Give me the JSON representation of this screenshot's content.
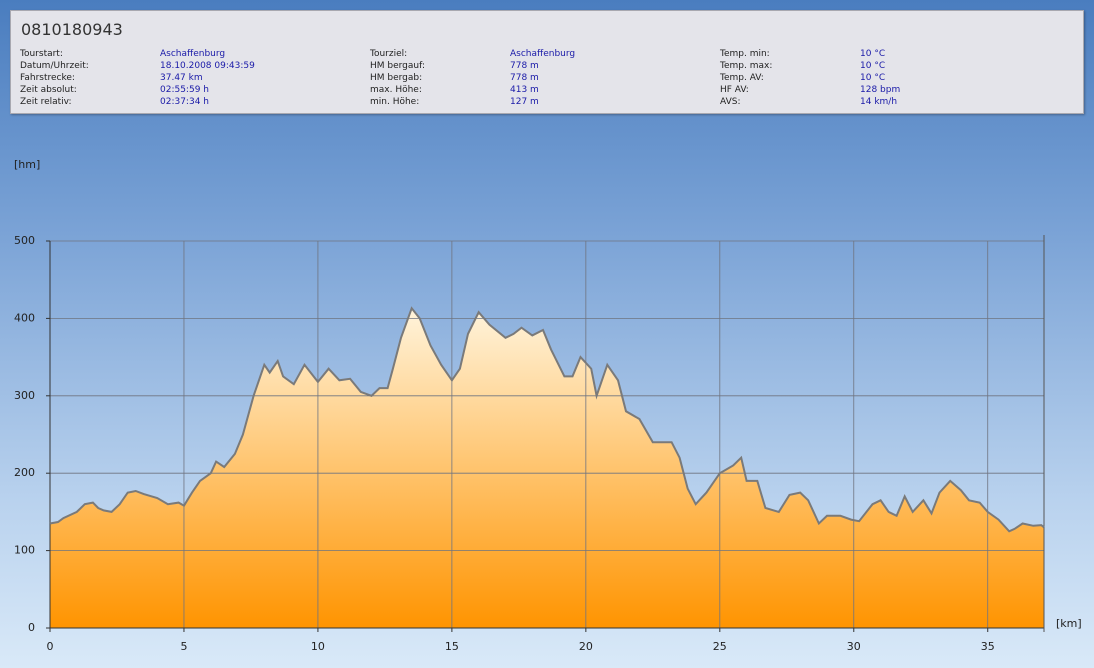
{
  "header": {
    "title": "0810180943",
    "columns": [
      [
        [
          "Tourstart:",
          "Aschaffenburg"
        ],
        [
          "Datum/Uhrzeit:",
          "18.10.2008 09:43:59"
        ],
        [
          "Fahrstrecke:",
          "37.47 km"
        ],
        [
          "Zeit absolut:",
          "02:55:59 h"
        ],
        [
          "Zeit relativ:",
          "02:37:34 h"
        ]
      ],
      [
        [
          "Tourziel:",
          "Aschaffenburg"
        ],
        [
          "HM bergauf:",
          "778 m"
        ],
        [
          "HM bergab:",
          "778 m"
        ],
        [
          "max. Höhe:",
          "413 m"
        ],
        [
          "min. Höhe:",
          "127 m"
        ]
      ],
      [
        [
          "Temp. min:",
          "10 °C"
        ],
        [
          "Temp. max:",
          "10 °C"
        ],
        [
          "Temp. AV:",
          "10 °C"
        ],
        [
          "HF AV:",
          "128 bpm"
        ],
        [
          "AVS:",
          "14 km/h"
        ]
      ]
    ]
  },
  "chart_data": {
    "type": "area",
    "y_label": "[hm]",
    "x_label": "[km]",
    "x": [
      0,
      0.3,
      0.5,
      1,
      1.3,
      1.6,
      1.8,
      2,
      2.3,
      2.6,
      2.9,
      3.2,
      3.5,
      4,
      4.4,
      4.8,
      5,
      5.3,
      5.6,
      6,
      6.2,
      6.5,
      6.9,
      7.2,
      7.6,
      8,
      8.2,
      8.5,
      8.7,
      9.1,
      9.5,
      10,
      10.4,
      10.8,
      11.2,
      11.6,
      12,
      12.3,
      12.6,
      12.8,
      13.1,
      13.5,
      13.8,
      14.2,
      14.6,
      15,
      15.3,
      15.6,
      16,
      16.4,
      17,
      17.3,
      17.6,
      18,
      18.4,
      18.7,
      19.2,
      19.5,
      19.8,
      20.2,
      20.4,
      20.8,
      21.2,
      21.5,
      22,
      22.5,
      23.2,
      23.5,
      23.8,
      24.1,
      24.5,
      25,
      25.5,
      25.8,
      26,
      26.4,
      26.7,
      27.2,
      27.6,
      28,
      28.3,
      28.7,
      29,
      29.5,
      29.9,
      30.2,
      30.7,
      31,
      31.3,
      31.6,
      31.9,
      32.2,
      32.6,
      32.9,
      33.2,
      33.6,
      34,
      34.3,
      34.7,
      35,
      35.4,
      35.8,
      36,
      36.3,
      36.7,
      37,
      37.1
    ],
    "y": [
      135,
      137,
      142,
      150,
      160,
      162,
      155,
      152,
      150,
      160,
      175,
      177,
      173,
      168,
      160,
      162,
      158,
      175,
      190,
      200,
      215,
      208,
      225,
      250,
      300,
      340,
      330,
      345,
      325,
      315,
      340,
      318,
      335,
      320,
      322,
      305,
      300,
      310,
      310,
      335,
      375,
      413,
      400,
      365,
      340,
      320,
      335,
      380,
      408,
      392,
      375,
      380,
      388,
      378,
      385,
      360,
      325,
      325,
      350,
      335,
      300,
      340,
      320,
      280,
      270,
      240,
      240,
      220,
      180,
      160,
      175,
      200,
      210,
      220,
      190,
      190,
      155,
      150,
      172,
      175,
      165,
      135,
      145,
      145,
      140,
      138,
      160,
      165,
      150,
      145,
      170,
      150,
      165,
      148,
      175,
      190,
      178,
      165,
      162,
      150,
      140,
      125,
      128,
      135,
      132,
      133,
      130
    ],
    "xlim": [
      0,
      37.1
    ],
    "ylim": [
      0,
      500
    ],
    "xticks": [
      0,
      5,
      10,
      15,
      20,
      25,
      30,
      35
    ],
    "yticks": [
      0,
      100,
      200,
      300,
      400,
      500
    ],
    "grid": true,
    "line_color": "#7a7a7a",
    "fill_top": "#fff4dc",
    "fill_bottom": "#ff9400"
  }
}
